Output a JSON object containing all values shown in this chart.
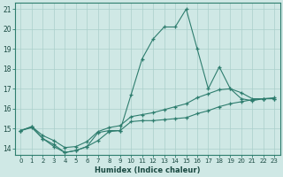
{
  "xlabel": "Humidex (Indice chaleur)",
  "bg_color": "#cfe8e5",
  "line_color": "#2e7d6e",
  "grid_color": "#aacfcb",
  "xlim": [
    -0.5,
    23.5
  ],
  "ylim": [
    13.7,
    21.3
  ],
  "xticks": [
    0,
    1,
    2,
    3,
    4,
    5,
    6,
    7,
    8,
    9,
    10,
    11,
    12,
    13,
    14,
    15,
    16,
    17,
    18,
    19,
    20,
    21,
    22,
    23
  ],
  "yticks": [
    14,
    15,
    16,
    17,
    18,
    19,
    20,
    21
  ],
  "series": [
    [
      14.9,
      15.1,
      14.5,
      14.1,
      13.8,
      13.9,
      14.1,
      14.8,
      14.9,
      14.9,
      16.7,
      18.5,
      19.5,
      20.1,
      20.1,
      21.0,
      19.0,
      17.0,
      18.1,
      17.0,
      16.5,
      16.4,
      16.5,
      16.5
    ],
    [
      14.9,
      15.05,
      14.5,
      14.2,
      13.8,
      13.9,
      14.1,
      14.4,
      14.85,
      14.9,
      15.35,
      15.4,
      15.4,
      15.45,
      15.5,
      15.55,
      15.75,
      15.9,
      16.1,
      16.25,
      16.35,
      16.45,
      16.5,
      16.55
    ],
    [
      14.9,
      15.1,
      14.65,
      14.4,
      14.05,
      14.1,
      14.35,
      14.85,
      15.05,
      15.15,
      15.6,
      15.7,
      15.8,
      15.95,
      16.1,
      16.25,
      16.55,
      16.75,
      16.95,
      17.0,
      16.8,
      16.5,
      16.5,
      16.5
    ]
  ]
}
